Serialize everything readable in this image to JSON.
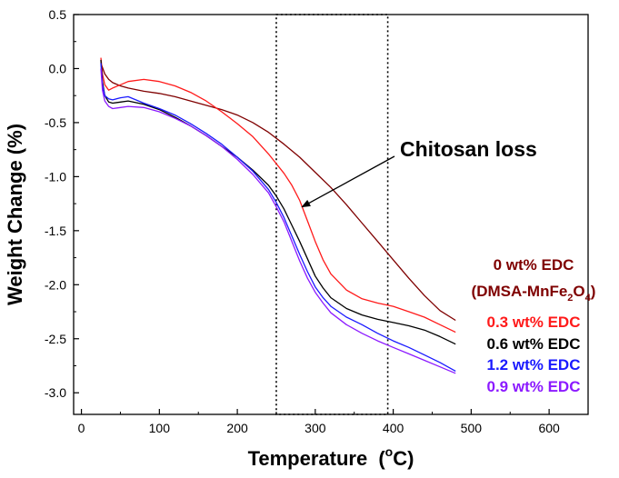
{
  "chart_data": {
    "type": "line",
    "xlabel": "Temperature",
    "xlabel_unit_prefix": "(",
    "xlabel_unit_sup": "o",
    "xlabel_unit_suffix": "C)",
    "ylabel": "Weight Change (%)",
    "xlim": [
      -10,
      650
    ],
    "ylim": [
      -3.2,
      0.5
    ],
    "x_ticks": [
      0,
      100,
      200,
      300,
      400,
      500,
      600
    ],
    "x_tick_labels": [
      "0",
      "100",
      "200",
      "300",
      "400",
      "500",
      "600"
    ],
    "y_ticks": [
      0.5,
      0.0,
      -0.5,
      -1.0,
      -1.5,
      -2.0,
      -2.5,
      -3.0
    ],
    "y_tick_labels": [
      "0.5",
      "0.0",
      "-0.5",
      "-1.0",
      "-1.5",
      "-2.0",
      "-2.5",
      "-3.0"
    ],
    "grid": false,
    "legend_placement": "right",
    "dotted_box_x": [
      250,
      393
    ],
    "annotation": {
      "text": "Chitosan loss",
      "arrow_from": [
        395,
        -0.85
      ],
      "arrow_to": [
        283,
        -1.28
      ]
    },
    "series": [
      {
        "name": "0 wt% EDC (DMSA-MnFe2O4)",
        "legend_line1": "0 wt% EDC",
        "legend_line2_prefix": "(DMSA-MnFe",
        "legend_sub1": "2",
        "legend_mid": "O",
        "legend_sub2": "4",
        "legend_suffix": ")",
        "color": "#7f0000",
        "x": [
          25,
          30,
          35,
          40,
          50,
          60,
          80,
          100,
          120,
          140,
          160,
          180,
          200,
          220,
          240,
          260,
          280,
          300,
          320,
          340,
          360,
          380,
          400,
          420,
          440,
          460,
          480
        ],
        "y": [
          0.05,
          -0.05,
          -0.1,
          -0.13,
          -0.16,
          -0.18,
          -0.21,
          -0.23,
          -0.26,
          -0.3,
          -0.34,
          -0.38,
          -0.43,
          -0.5,
          -0.59,
          -0.7,
          -0.82,
          -0.96,
          -1.1,
          -1.26,
          -1.43,
          -1.6,
          -1.77,
          -1.94,
          -2.1,
          -2.24,
          -2.33
        ]
      },
      {
        "name": "0.3 wt% EDC",
        "color": "#ff1a1a",
        "x": [
          25,
          27,
          30,
          35,
          40,
          50,
          60,
          80,
          100,
          120,
          140,
          160,
          180,
          200,
          220,
          240,
          260,
          270,
          280,
          290,
          300,
          310,
          320,
          340,
          360,
          380,
          400,
          420,
          440,
          460,
          480
        ],
        "y": [
          0.1,
          -0.05,
          -0.15,
          -0.2,
          -0.18,
          -0.15,
          -0.12,
          -0.1,
          -0.12,
          -0.16,
          -0.22,
          -0.3,
          -0.4,
          -0.51,
          -0.63,
          -0.79,
          -0.97,
          -1.08,
          -1.22,
          -1.41,
          -1.6,
          -1.77,
          -1.9,
          -2.05,
          -2.13,
          -2.17,
          -2.2,
          -2.25,
          -2.3,
          -2.37,
          -2.44
        ]
      },
      {
        "name": "0.6 wt% EDC",
        "color": "#000000",
        "x": [
          25,
          27,
          30,
          35,
          40,
          50,
          60,
          80,
          100,
          120,
          140,
          160,
          180,
          200,
          220,
          240,
          250,
          260,
          270,
          280,
          290,
          300,
          310,
          320,
          340,
          360,
          380,
          400,
          420,
          440,
          460,
          480
        ],
        "y": [
          0.08,
          -0.12,
          -0.25,
          -0.31,
          -0.32,
          -0.31,
          -0.3,
          -0.33,
          -0.38,
          -0.45,
          -0.53,
          -0.62,
          -0.72,
          -0.82,
          -0.94,
          -1.08,
          -1.18,
          -1.3,
          -1.45,
          -1.6,
          -1.76,
          -1.92,
          -2.03,
          -2.12,
          -2.22,
          -2.28,
          -2.32,
          -2.35,
          -2.38,
          -2.42,
          -2.48,
          -2.55
        ]
      },
      {
        "name": "1.2 wt% EDC",
        "color": "#1a1aff",
        "x": [
          25,
          27,
          30,
          35,
          40,
          50,
          60,
          80,
          100,
          120,
          140,
          160,
          180,
          200,
          220,
          240,
          250,
          260,
          270,
          280,
          290,
          300,
          310,
          320,
          340,
          360,
          380,
          400,
          420,
          440,
          460,
          480
        ],
        "y": [
          0.05,
          -0.15,
          -0.25,
          -0.28,
          -0.29,
          -0.27,
          -0.26,
          -0.32,
          -0.37,
          -0.43,
          -0.51,
          -0.6,
          -0.7,
          -0.82,
          -0.95,
          -1.12,
          -1.24,
          -1.38,
          -1.55,
          -1.72,
          -1.88,
          -2.02,
          -2.12,
          -2.2,
          -2.3,
          -2.37,
          -2.45,
          -2.52,
          -2.58,
          -2.65,
          -2.72,
          -2.8
        ]
      },
      {
        "name": "0.9 wt% EDC",
        "color": "#8c1aff",
        "x": [
          25,
          27,
          30,
          35,
          40,
          50,
          60,
          80,
          100,
          120,
          140,
          160,
          180,
          200,
          220,
          240,
          250,
          260,
          270,
          280,
          290,
          300,
          310,
          320,
          340,
          360,
          380,
          400,
          420,
          440,
          460,
          480
        ],
        "y": [
          0.0,
          -0.2,
          -0.3,
          -0.35,
          -0.37,
          -0.36,
          -0.35,
          -0.36,
          -0.4,
          -0.46,
          -0.53,
          -0.62,
          -0.72,
          -0.84,
          -0.98,
          -1.15,
          -1.28,
          -1.42,
          -1.6,
          -1.78,
          -1.94,
          -2.07,
          -2.17,
          -2.26,
          -2.37,
          -2.45,
          -2.52,
          -2.58,
          -2.64,
          -2.7,
          -2.76,
          -2.82
        ]
      }
    ]
  }
}
